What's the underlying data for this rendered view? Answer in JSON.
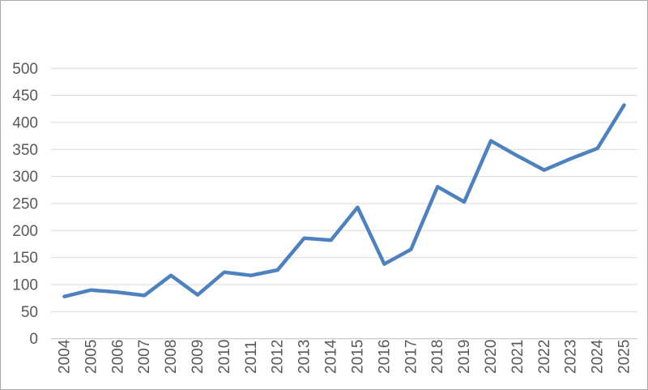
{
  "chart_data": {
    "type": "line",
    "title": "",
    "xlabel": "",
    "ylabel": "",
    "categories": [
      "2004",
      "2005",
      "2006",
      "2007",
      "2008",
      "2009",
      "2010",
      "2011",
      "2012",
      "2013",
      "2014",
      "2015",
      "2016",
      "2017",
      "2018",
      "2019",
      "2020",
      "2021",
      "2022",
      "2023",
      "2024",
      "2025"
    ],
    "values": [
      78,
      90,
      86,
      80,
      117,
      81,
      123,
      117,
      127,
      186,
      182,
      243,
      138,
      165,
      281,
      253,
      366,
      338,
      312,
      333,
      352,
      432
    ],
    "ylim": [
      0,
      500
    ],
    "ytick_step": 50,
    "yticks": [
      0,
      50,
      100,
      150,
      200,
      250,
      300,
      350,
      400,
      450,
      500
    ],
    "grid": true,
    "legend": "none",
    "x_label_rotation_deg": -90,
    "colors": {
      "line": "#4F81BD",
      "gridline": "#D9D9D9",
      "axis_line": "#BFBFBF",
      "tick_label": "#595959",
      "background": "#FFFFFF",
      "frame_border": "#ABABAB"
    }
  }
}
